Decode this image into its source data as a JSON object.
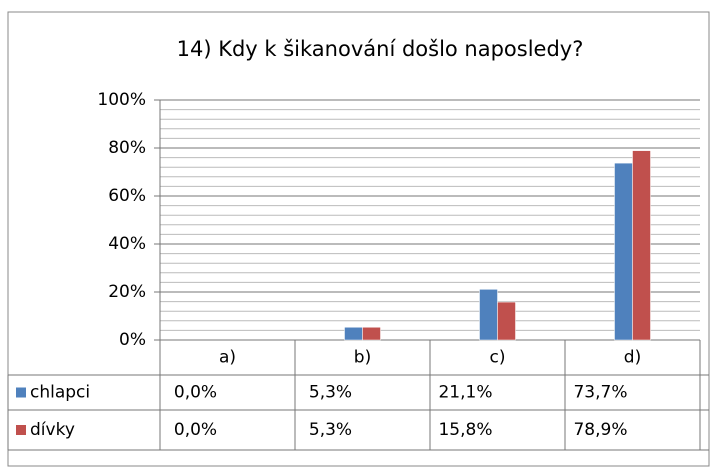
{
  "chart_data": {
    "type": "bar",
    "title": "14) Kdy k šikanování došlo naposledy?",
    "categories": [
      "a)",
      "b)",
      "c)",
      "d)"
    ],
    "series": [
      {
        "name": "chlapci",
        "color": "#4f81bd",
        "values": [
          0,
          5.3,
          21.1,
          73.7
        ],
        "value_labels": [
          "0,0%",
          "5,3%",
          "21,1%",
          "73,7%"
        ]
      },
      {
        "name": "dívky",
        "color": "#c0504d",
        "values": [
          0,
          5.3,
          15.8,
          78.9
        ],
        "value_labels": [
          "0,0%",
          "5,3%",
          "15,8%",
          "78,9%"
        ]
      }
    ],
    "ylim": [
      0,
      100
    ],
    "yticks": [
      {
        "value": 0,
        "label": "0%"
      },
      {
        "value": 20,
        "label": "20%"
      },
      {
        "value": 40,
        "label": "40%"
      },
      {
        "value": 60,
        "label": "60%"
      },
      {
        "value": 80,
        "label": "80%"
      },
      {
        "value": 100,
        "label": "100%"
      }
    ],
    "minor_yticks": [
      4,
      8,
      12,
      16,
      24,
      28,
      32,
      36,
      44,
      48,
      52,
      56,
      64,
      68,
      72,
      76,
      84,
      88,
      92,
      96
    ],
    "grid": true
  }
}
